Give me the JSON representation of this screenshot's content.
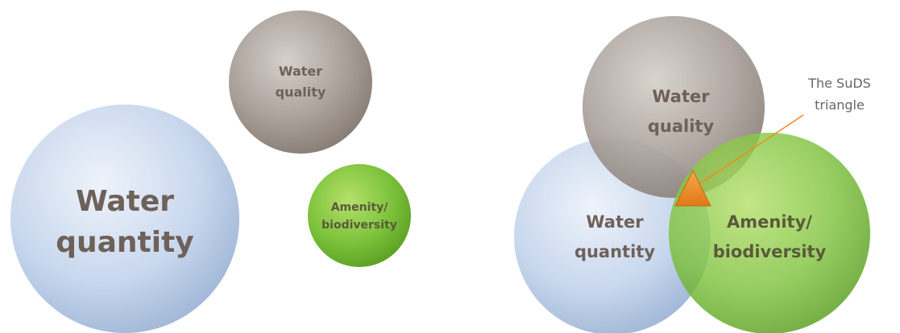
{
  "left_diagram": {
    "water_quantity": {
      "line1": "Water",
      "line2": "quantity"
    },
    "water_quality": {
      "line1": "Water",
      "line2": "quality"
    },
    "amenity": {
      "line1": "Amenity/",
      "line2": "biodiversity"
    }
  },
  "right_diagram": {
    "water_quantity": {
      "line1": "Water",
      "line2": "quantity"
    },
    "water_quality": {
      "line1": "Water",
      "line2": "quality"
    },
    "amenity": {
      "line1": "Amenity/",
      "line2": "biodiversity"
    },
    "callout": {
      "line1": "The SuDS",
      "line2": "triangle"
    }
  },
  "colors": {
    "blue": "#c9d9ef",
    "grey": "#a59c95",
    "green": "#7cc23a",
    "triangle": "#f0891e",
    "label": "#6e6159"
  }
}
